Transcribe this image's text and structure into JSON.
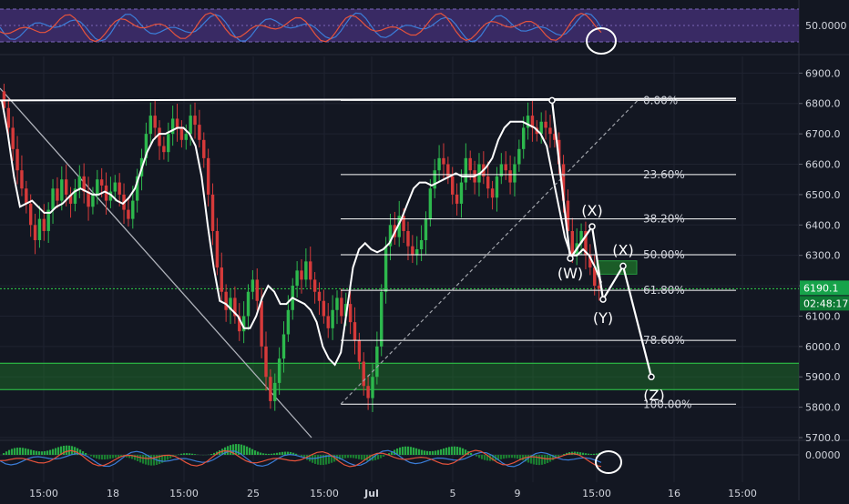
{
  "chart_data": {
    "type": "candlestick",
    "main": {
      "y_ticks": [
        "6900.0",
        "6800.0",
        "6700.0",
        "6600.0",
        "6500.0",
        "6400.0",
        "6300.0",
        "6200.0",
        "6100.0",
        "6000.0",
        "5900.0",
        "5800.0",
        "5700.0"
      ],
      "y_tick_values": [
        6900,
        6800,
        6700,
        6600,
        6500,
        6400,
        6300,
        6200,
        6100,
        6000,
        5900,
        5800,
        5700
      ],
      "ylim": [
        5697,
        6955
      ],
      "x_ticks": [
        "15:00",
        "18",
        "15:00",
        "25",
        "15:00",
        "Jul",
        "5",
        "15:00",
        "9",
        "15:00",
        "16",
        "15:00"
      ],
      "price_label": "6190.1",
      "countdown_label": "02:48:17",
      "current_price": 6190.1,
      "candles_approx": [
        [
          6840,
          6785
        ],
        [
          6785,
          6720
        ],
        [
          6720,
          6650
        ],
        [
          6650,
          6580
        ],
        [
          6580,
          6520
        ],
        [
          6520,
          6470
        ],
        [
          6470,
          6400
        ],
        [
          6400,
          6350
        ],
        [
          6350,
          6420
        ],
        [
          6420,
          6380
        ],
        [
          6380,
          6450
        ],
        [
          6450,
          6520
        ],
        [
          6520,
          6480
        ],
        [
          6480,
          6550
        ],
        [
          6550,
          6500
        ],
        [
          6500,
          6470
        ],
        [
          6470,
          6520
        ],
        [
          6520,
          6560
        ],
        [
          6560,
          6510
        ],
        [
          6510,
          6460
        ],
        [
          6460,
          6500
        ],
        [
          6500,
          6550
        ],
        [
          6550,
          6530
        ],
        [
          6530,
          6480
        ],
        [
          6480,
          6510
        ],
        [
          6510,
          6540
        ],
        [
          6540,
          6500
        ],
        [
          6500,
          6450
        ],
        [
          6450,
          6420
        ],
        [
          6420,
          6480
        ],
        [
          6480,
          6560
        ],
        [
          6560,
          6620
        ],
        [
          6620,
          6700
        ],
        [
          6700,
          6760
        ],
        [
          6760,
          6720
        ],
        [
          6720,
          6660
        ],
        [
          6660,
          6640
        ],
        [
          6640,
          6700
        ],
        [
          6700,
          6750
        ],
        [
          6750,
          6720
        ],
        [
          6720,
          6680
        ],
        [
          6680,
          6700
        ],
        [
          6700,
          6760
        ],
        [
          6760,
          6730
        ],
        [
          6730,
          6680
        ],
        [
          6680,
          6620
        ],
        [
          6620,
          6500
        ],
        [
          6500,
          6380
        ],
        [
          6380,
          6260
        ],
        [
          6260,
          6180
        ],
        [
          6180,
          6120
        ],
        [
          6120,
          6160
        ],
        [
          6160,
          6100
        ],
        [
          6100,
          6050
        ],
        [
          6050,
          6100
        ],
        [
          6100,
          6180
        ],
        [
          6180,
          6220
        ],
        [
          6220,
          6150
        ],
        [
          6150,
          6000
        ],
        [
          6000,
          5900
        ],
        [
          5900,
          5820
        ],
        [
          5820,
          5880
        ],
        [
          5880,
          5960
        ],
        [
          5960,
          6040
        ],
        [
          6040,
          6120
        ],
        [
          6120,
          6200
        ],
        [
          6200,
          6250
        ],
        [
          6250,
          6220
        ],
        [
          6220,
          6280
        ],
        [
          6280,
          6220
        ],
        [
          6220,
          6180
        ],
        [
          6180,
          6150
        ],
        [
          6150,
          6100
        ],
        [
          6100,
          6060
        ],
        [
          6060,
          6120
        ],
        [
          6120,
          6160
        ],
        [
          6160,
          6100
        ],
        [
          6100,
          6140
        ],
        [
          6140,
          6080
        ],
        [
          6080,
          6020
        ],
        [
          6020,
          5950
        ],
        [
          5950,
          5870
        ],
        [
          5870,
          5830
        ],
        [
          5830,
          5900
        ],
        [
          5900,
          6000
        ],
        [
          6000,
          6180
        ],
        [
          6180,
          6330
        ],
        [
          6330,
          6400
        ],
        [
          6400,
          6360
        ],
        [
          6360,
          6430
        ],
        [
          6430,
          6380
        ],
        [
          6380,
          6330
        ],
        [
          6330,
          6300
        ],
        [
          6300,
          6320
        ],
        [
          6320,
          6350
        ],
        [
          6350,
          6420
        ],
        [
          6420,
          6520
        ],
        [
          6520,
          6580
        ],
        [
          6580,
          6620
        ],
        [
          6620,
          6600
        ],
        [
          6600,
          6560
        ],
        [
          6560,
          6500
        ],
        [
          6500,
          6470
        ],
        [
          6470,
          6540
        ],
        [
          6540,
          6620
        ],
        [
          6620,
          6580
        ],
        [
          6580,
          6540
        ],
        [
          6540,
          6600
        ],
        [
          6600,
          6560
        ],
        [
          6560,
          6520
        ],
        [
          6520,
          6490
        ],
        [
          6490,
          6560
        ],
        [
          6560,
          6600
        ],
        [
          6600,
          6580
        ],
        [
          6580,
          6540
        ],
        [
          6540,
          6600
        ],
        [
          6600,
          6650
        ],
        [
          6650,
          6720
        ],
        [
          6720,
          6760
        ],
        [
          6760,
          6720
        ],
        [
          6720,
          6700
        ],
        [
          6700,
          6740
        ],
        [
          6740,
          6720
        ],
        [
          6720,
          6700
        ],
        [
          6700,
          6680
        ],
        [
          6680,
          6600
        ],
        [
          6600,
          6480
        ],
        [
          6480,
          6380
        ],
        [
          6380,
          6300
        ],
        [
          6300,
          6340
        ],
        [
          6340,
          6380
        ],
        [
          6380,
          6300
        ],
        [
          6300,
          6260
        ],
        [
          6260,
          6200
        ],
        [
          6200,
          6190
        ]
      ],
      "ma_curve_approx": [
        6810,
        6700,
        6560,
        6460,
        6470,
        6480,
        6460,
        6440,
        6440,
        6460,
        6470,
        6490,
        6510,
        6520,
        6510,
        6500,
        6500,
        6510,
        6500,
        6480,
        6470,
        6490,
        6520,
        6580,
        6640,
        6680,
        6700,
        6700,
        6710,
        6720,
        6720,
        6700,
        6660,
        6560,
        6400,
        6260,
        6150,
        6140,
        6120,
        6100,
        6060,
        6060,
        6100,
        6160,
        6200,
        6180,
        6140,
        6140,
        6160,
        6150,
        6140,
        6120,
        6080,
        6000,
        5960,
        5940,
        5980,
        6120,
        6260,
        6320,
        6340,
        6320,
        6310,
        6320,
        6340,
        6380,
        6420,
        6470,
        6520,
        6540,
        6540,
        6530,
        6540,
        6550,
        6560,
        6570,
        6560,
        6560,
        6560,
        6570,
        6590,
        6620,
        6680,
        6720,
        6740,
        6740,
        6740,
        6730,
        6720,
        6700,
        6660,
        6560,
        6460,
        6360,
        6300,
        6300,
        6320,
        6300,
        6260,
        6210
      ]
    },
    "resistance_line": {
      "price": 6810
    },
    "descending_line": {
      "from_price": 6850,
      "to_price": 5700
    },
    "fibonacci": {
      "levels": [
        {
          "label": "0.00%",
          "ratio": 0.0,
          "price": 6810
        },
        {
          "label": "23.60%",
          "ratio": 0.236,
          "price": 6566
        },
        {
          "label": "38.20%",
          "ratio": 0.382,
          "price": 6420
        },
        {
          "label": "50.00%",
          "ratio": 0.5,
          "price": 6302
        },
        {
          "label": "61.80%",
          "ratio": 0.618,
          "price": 6185
        },
        {
          "label": "78.60%",
          "ratio": 0.786,
          "price": 6020
        },
        {
          "label": "100.00%",
          "ratio": 1.0,
          "price": 5810
        }
      ]
    },
    "support_zone": {
      "top": 5945,
      "bottom": 5858
    },
    "target_box": {
      "top": 6282,
      "bottom": 6238
    },
    "wave_projection": {
      "points": [
        {
          "label": "",
          "price": 6810
        },
        {
          "label": "(W)",
          "price": 6290
        },
        {
          "label": "(X)",
          "price": 6395
        },
        {
          "label": "(Y)",
          "price": 6155
        },
        {
          "label": "(X)",
          "price": 6265
        },
        {
          "label": "(Z)",
          "price": 5900
        }
      ]
    },
    "rsi": {
      "tick": "50.0000",
      "level": 50
    },
    "macd": {
      "tick": "0.0000",
      "level": 0
    }
  },
  "colors": {
    "background": "#131722",
    "grid": "#1f2330",
    "bull": "#2db84d",
    "bear": "#d63a3a",
    "ma_line": "#ffffff",
    "fib_line": "#ffffff",
    "zone_fill": "#1f7a2a",
    "rsi_band": "#3e2c6b",
    "price_tag": "#16a34a",
    "axis_text": "#d1d4dc"
  }
}
